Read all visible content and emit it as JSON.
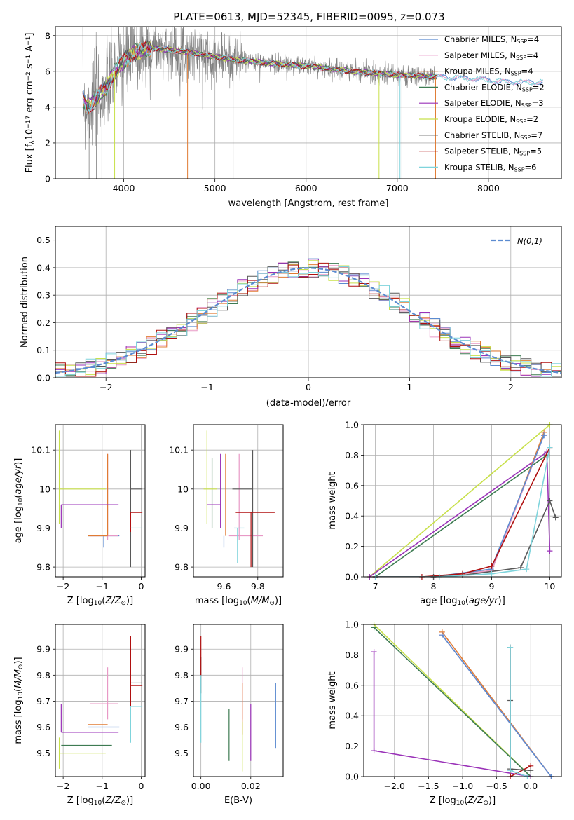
{
  "title": "PLATE=0613, MJD=52345, FIBERID=0095, z=0.073",
  "colors": {
    "Chabrier MILES": "#5b8bd0",
    "Salpeter MILES": "#e899c6",
    "Kroupa MILES": "#e07b33",
    "Chabrier ELODIE": "#3d7b52",
    "Salpeter ELODIE": "#9a32b8",
    "Kroupa ELODIE": "#c8e04a",
    "Chabrier STELIB": "#585858",
    "Salpeter STELIB": "#b01010",
    "Kroupa STELIB": "#7fd4dc",
    "data": "#808080",
    "gauss": "#5b8bd0"
  },
  "chart_data": [
    {
      "id": "spectrum",
      "type": "line",
      "xlabel": "wavelength [Angstrom, rest frame]",
      "ylabel": "Flux [f_λ10^-17 erg cm^-2 s^-1 A^-1]",
      "xlim": [
        3250,
        8800
      ],
      "ylim": [
        0,
        8.5
      ],
      "xticks": [
        4000,
        5000,
        6000,
        7000,
        8000
      ],
      "yticks": [
        0,
        2,
        4,
        6,
        8
      ],
      "legend_position": "top-right",
      "legend": [
        {
          "model": "Chabrier MILES",
          "nssp": "4"
        },
        {
          "model": "Salpeter MILES",
          "nssp": "4"
        },
        {
          "model": "Kroupa MILES",
          "nssp": "4"
        },
        {
          "model": "Chabrier ELODIE",
          "nssp": "2"
        },
        {
          "model": "Salpeter ELODIE",
          "nssp": "3"
        },
        {
          "model": "Kroupa ELODIE",
          "nssp": "2"
        },
        {
          "model": "Chabrier STELIB",
          "nssp": "7"
        },
        {
          "model": "Salpeter STELIB",
          "nssp": "5"
        },
        {
          "model": "Kroupa STELIB",
          "nssp": "6"
        }
      ],
      "continuum": {
        "x": [
          3550,
          3600,
          3700,
          3800,
          3900,
          4000,
          4100,
          4300,
          4500,
          4800,
          5000,
          5500,
          6000,
          6500,
          7000,
          7400,
          7800,
          8200,
          8600
        ],
        "y": [
          4.5,
          4.0,
          4.5,
          5.0,
          6.0,
          6.6,
          7.0,
          7.3,
          7.2,
          7.0,
          6.8,
          6.5,
          6.3,
          6.0,
          5.8,
          5.7,
          5.6,
          5.4,
          5.4
        ]
      },
      "data_range": [
        3550,
        7420
      ],
      "model_range": [
        3550,
        8600
      ]
    },
    {
      "id": "residuals",
      "type": "histogram",
      "xlabel": "(data-model)/error",
      "ylabel": "Normed distribution",
      "xlim": [
        -2.5,
        2.5
      ],
      "ylim": [
        0,
        0.55
      ],
      "xticks": [
        -2,
        -1,
        0,
        1,
        2
      ],
      "yticks": [
        0.0,
        0.1,
        0.2,
        0.3,
        0.4,
        0.5
      ],
      "bin_width": 0.1,
      "gaussian_label": "N(0,1)",
      "legend_position": "top-right"
    },
    {
      "id": "age_vs_Z",
      "type": "scatter",
      "xlabel": "Z [log10(Z/Z_sun)]",
      "ylabel": "age [log10(age/yr)]",
      "xlim": [
        -2.2,
        0.1
      ],
      "ylim": [
        9.775,
        10.165
      ],
      "xticks": [
        -2,
        -1,
        0
      ],
      "yticks": [
        9.8,
        9.9,
        10.0,
        10.1
      ],
      "points": [
        {
          "model": "Chabrier MILES",
          "x": -0.96,
          "y": 9.88,
          "xerr": [
            0.4,
            0.4
          ],
          "yerr": [
            0.03,
            0.0
          ]
        },
        {
          "model": "Salpeter MILES",
          "x": -0.86,
          "y": 9.88,
          "xerr": [
            0.46,
            0.26
          ],
          "yerr": [
            0.01,
            0.21
          ]
        },
        {
          "model": "Kroupa MILES",
          "x": -0.86,
          "y": 9.88,
          "xerr": [
            0.5,
            0.0
          ],
          "yerr": [
            0.0,
            0.21
          ]
        },
        {
          "model": "Chabrier ELODIE",
          "x": -0.27,
          "y": 9.97,
          "xerr": [
            0.0,
            0.0
          ],
          "yerr": [
            0.09,
            0.13
          ]
        },
        {
          "model": "Salpeter ELODIE",
          "x": -2.05,
          "y": 9.96,
          "xerr": [
            0.0,
            1.47
          ],
          "yerr": [
            0.06,
            0.0
          ]
        },
        {
          "model": "Kroupa ELODIE",
          "x": -2.1,
          "y": 10.0,
          "xerr": [
            0.0,
            1.19
          ],
          "yerr": [
            0.09,
            0.15
          ]
        },
        {
          "model": "Chabrier STELIB",
          "x": -0.27,
          "y": 10.0,
          "xerr": [
            0.0,
            0.3
          ],
          "yerr": [
            0.2,
            0.1
          ]
        },
        {
          "model": "Salpeter STELIB",
          "x": -0.27,
          "y": 9.94,
          "xerr": [
            0.0,
            0.3
          ],
          "yerr": [
            0.05,
            0.0
          ]
        },
        {
          "model": "Kroupa STELIB",
          "x": -0.27,
          "y": 9.9,
          "xerr": [
            0.0,
            0.3
          ],
          "yerr": [
            0.0,
            0.0
          ]
        }
      ]
    },
    {
      "id": "age_vs_mass",
      "type": "scatter",
      "xlabel": "mass [log10(M/M_sun)]",
      "ylabel": "",
      "xlim": [
        9.42,
        9.95
      ],
      "ylim": [
        9.775,
        10.165
      ],
      "xticks": [
        9.6,
        9.8
      ],
      "yticks": [
        9.8,
        9.9,
        10.0,
        10.1
      ],
      "points": [
        {
          "model": "Chabrier MILES",
          "x": 9.6,
          "y": 9.88,
          "xerr": [
            0.0,
            0.0
          ],
          "yerr": [
            0.03,
            0.0
          ]
        },
        {
          "model": "Salpeter MILES",
          "x": 9.69,
          "y": 9.88,
          "xerr": [
            0.06,
            0.14
          ],
          "yerr": [
            0.01,
            0.21
          ]
        },
        {
          "model": "Kroupa MILES",
          "x": 9.61,
          "y": 9.88,
          "xerr": [
            0.0,
            0.0
          ],
          "yerr": [
            0.0,
            0.21
          ]
        },
        {
          "model": "Chabrier ELODIE",
          "x": 9.53,
          "y": 9.96,
          "xerr": [
            0.0,
            0.0
          ],
          "yerr": [
            0.06,
            0.12
          ]
        },
        {
          "model": "Salpeter ELODIE",
          "x": 9.58,
          "y": 9.96,
          "xerr": [
            0.08,
            0.0
          ],
          "yerr": [
            0.06,
            0.13
          ]
        },
        {
          "model": "Kroupa ELODIE",
          "x": 9.5,
          "y": 10.0,
          "xerr": [
            0.02,
            0.06
          ],
          "yerr": [
            0.09,
            0.15
          ]
        },
        {
          "model": "Chabrier STELIB",
          "x": 9.77,
          "y": 10.0,
          "xerr": [
            0.12,
            0.0
          ],
          "yerr": [
            0.2,
            0.1
          ]
        },
        {
          "model": "Salpeter STELIB",
          "x": 9.76,
          "y": 9.94,
          "xerr": [
            0.09,
            0.14
          ],
          "yerr": [
            0.14,
            0.0
          ]
        },
        {
          "model": "Kroupa STELIB",
          "x": 9.68,
          "y": 9.9,
          "xerr": [
            0.02,
            0.04
          ],
          "yerr": [
            0.09,
            0.0
          ]
        }
      ]
    },
    {
      "id": "weight_vs_age",
      "type": "line",
      "xlabel": "age [log10(age/yr)]",
      "ylabel": "mass weight",
      "xlim": [
        6.8,
        10.2
      ],
      "ylim": [
        0,
        1.0
      ],
      "xticks": [
        7,
        8,
        9,
        10
      ],
      "yticks": [
        0.0,
        0.2,
        0.4,
        0.6,
        0.8,
        1.0
      ],
      "series": [
        {
          "model": "Kroupa ELODIE",
          "x": [
            6.9,
            10.0
          ],
          "y": [
            0.0,
            1.0
          ]
        },
        {
          "model": "Salpeter ELODIE",
          "x": [
            6.9,
            9.95,
            10.0
          ],
          "y": [
            0.0,
            0.82,
            0.17
          ]
        },
        {
          "model": "Chabrier ELODIE",
          "x": [
            7.0,
            9.95
          ],
          "y": [
            0.0,
            0.8
          ]
        },
        {
          "model": "Kroupa MILES",
          "x": [
            7.0,
            8.0,
            9.0,
            9.9
          ],
          "y": [
            0.0,
            0.0,
            0.04,
            0.95
          ]
        },
        {
          "model": "Salpeter MILES",
          "x": [
            7.0,
            8.0,
            9.0,
            9.9
          ],
          "y": [
            0.0,
            0.0,
            0.04,
            0.93
          ]
        },
        {
          "model": "Chabrier MILES",
          "x": [
            7.0,
            8.0,
            8.99,
            9.9
          ],
          "y": [
            0.0,
            0.0,
            0.05,
            0.93
          ]
        },
        {
          "model": "Salpeter STELIB",
          "x": [
            7.0,
            7.8,
            8.5,
            9.0,
            10.0
          ],
          "y": [
            0.0,
            0.0,
            0.02,
            0.07,
            0.85
          ]
        },
        {
          "model": "Chabrier STELIB",
          "x": [
            7.0,
            8.0,
            8.5,
            9.5,
            10.0,
            10.1
          ],
          "y": [
            0.0,
            0.0,
            0.01,
            0.06,
            0.5,
            0.39
          ]
        },
        {
          "model": "Kroupa STELIB",
          "x": [
            7.0,
            8.1,
            9.0,
            9.6,
            10.0
          ],
          "y": [
            0.0,
            0.0,
            0.02,
            0.05,
            0.85
          ]
        }
      ]
    },
    {
      "id": "mass_vs_Z",
      "type": "scatter",
      "xlabel": "Z [log10(Z/Z_sun)]",
      "ylabel": "mass [log10(M/M_sun)]",
      "xlim": [
        -2.2,
        0.1
      ],
      "ylim": [
        9.41,
        9.995
      ],
      "xticks": [
        -2,
        -1,
        0
      ],
      "yticks": [
        9.5,
        9.6,
        9.7,
        9.8,
        9.9
      ],
      "points": [
        {
          "model": "Chabrier MILES",
          "x": -0.96,
          "y": 9.6,
          "xerr": [
            0.4,
            0.4
          ],
          "yerr": [
            0.0,
            0.0
          ]
        },
        {
          "model": "Salpeter MILES",
          "x": -0.86,
          "y": 9.69,
          "xerr": [
            0.46,
            0.26
          ],
          "yerr": [
            0.06,
            0.14
          ]
        },
        {
          "model": "Kroupa MILES",
          "x": -0.86,
          "y": 9.61,
          "xerr": [
            0.5,
            0.0
          ],
          "yerr": [
            0.0,
            0.0
          ]
        },
        {
          "model": "Chabrier ELODIE",
          "x": -2.05,
          "y": 9.53,
          "xerr": [
            0.0,
            1.3
          ],
          "yerr": [
            0.0,
            0.0
          ]
        },
        {
          "model": "Salpeter ELODIE",
          "x": -2.05,
          "y": 9.58,
          "xerr": [
            0.0,
            1.47
          ],
          "yerr": [
            0.0,
            0.11
          ]
        },
        {
          "model": "Kroupa ELODIE",
          "x": -2.1,
          "y": 9.5,
          "xerr": [
            0.0,
            1.19
          ],
          "yerr": [
            0.06,
            0.06
          ]
        },
        {
          "model": "Chabrier STELIB",
          "x": -0.27,
          "y": 9.77,
          "xerr": [
            0.0,
            0.3
          ],
          "yerr": [
            0.12,
            0.0
          ]
        },
        {
          "model": "Salpeter STELIB",
          "x": -0.27,
          "y": 9.76,
          "xerr": [
            0.0,
            0.3
          ],
          "yerr": [
            0.09,
            0.19
          ]
        },
        {
          "model": "Kroupa STELIB",
          "x": -0.27,
          "y": 9.68,
          "xerr": [
            0.0,
            0.3
          ],
          "yerr": [
            0.14,
            0.0
          ]
        }
      ]
    },
    {
      "id": "mass_vs_ebv",
      "type": "scatter",
      "xlabel": "E(B-V)",
      "ylabel": "",
      "xlim": [
        -0.003,
        0.033
      ],
      "ylim": [
        9.41,
        9.995
      ],
      "xticks": [
        0.0,
        0.02
      ],
      "xticklabels": [
        "0.00",
        "0.02"
      ],
      "yticks": [
        9.5,
        9.6,
        9.7,
        9.8,
        9.9
      ],
      "points": [
        {
          "model": "Chabrier MILES",
          "x": 0.03,
          "y": 9.65,
          "xerr": [
            0.0,
            0.0
          ],
          "yerr": [
            0.13,
            0.12
          ]
        },
        {
          "model": "Salpeter MILES",
          "x": 0.0166,
          "y": 9.69,
          "xerr": [
            0.0,
            0.0
          ],
          "yerr": [
            0.06,
            0.14
          ]
        },
        {
          "model": "Kroupa MILES",
          "x": 0.0166,
          "y": 9.69,
          "xerr": [
            0.0,
            0.0
          ],
          "yerr": [
            0.12,
            0.08
          ]
        },
        {
          "model": "Chabrier ELODIE",
          "x": 0.0113,
          "y": 9.57,
          "xerr": [
            0.0,
            0.0
          ],
          "yerr": [
            0.1,
            0.1
          ]
        },
        {
          "model": "Salpeter ELODIE",
          "x": 0.02,
          "y": 9.58,
          "xerr": [
            0.0,
            0.0
          ],
          "yerr": [
            0.11,
            0.11
          ]
        },
        {
          "model": "Kroupa ELODIE",
          "x": 0.0166,
          "y": 9.52,
          "xerr": [
            0.0,
            0.0
          ],
          "yerr": [
            0.09,
            0.1
          ]
        },
        {
          "model": "Chabrier STELIB",
          "x": 0.0,
          "y": 9.77,
          "xerr": [
            0.0,
            0.0
          ],
          "yerr": [
            0.04,
            0.1
          ]
        },
        {
          "model": "Salpeter STELIB",
          "x": 0.0,
          "y": 9.84,
          "xerr": [
            0.0,
            0.0
          ],
          "yerr": [
            0.04,
            0.11
          ]
        },
        {
          "model": "Kroupa STELIB",
          "x": 0.0,
          "y": 9.68,
          "xerr": [
            0.0,
            0.0
          ],
          "yerr": [
            0.14,
            0.12
          ]
        }
      ]
    },
    {
      "id": "weight_vs_Z",
      "type": "line",
      "xlabel": "Z [log10(Z/Z_sun)]",
      "ylabel": "mass weight",
      "xlim": [
        -2.45,
        0.45
      ],
      "ylim": [
        0,
        1.0
      ],
      "xticks": [
        -2.0,
        -1.5,
        -1.0,
        -0.5,
        0.0
      ],
      "xticklabels": [
        "−2.0",
        "−1.5",
        "−1.0",
        "−0.5",
        "0.0"
      ],
      "yticks": [
        0.0,
        0.2,
        0.4,
        0.6,
        0.8,
        1.0
      ],
      "series": [
        {
          "model": "Kroupa ELODIE",
          "x": [
            -2.3,
            0.0
          ],
          "y": [
            1.0,
            0.0
          ]
        },
        {
          "model": "Chabrier ELODIE",
          "x": [
            -2.3,
            0.0
          ],
          "y": [
            0.98,
            0.0
          ]
        },
        {
          "model": "Salpeter ELODIE",
          "x": [
            -2.3,
            -2.3,
            0.0
          ],
          "y": [
            0.82,
            0.17,
            0.0
          ]
        },
        {
          "model": "Kroupa MILES",
          "x": [
            -1.3,
            0.3
          ],
          "y": [
            0.95,
            0.0
          ]
        },
        {
          "model": "Salpeter MILES",
          "x": [
            -1.3,
            0.3
          ],
          "y": [
            0.93,
            0.0
          ]
        },
        {
          "model": "Chabrier MILES",
          "x": [
            -1.3,
            0.3
          ],
          "y": [
            0.93,
            0.0
          ]
        },
        {
          "model": "Salpeter STELIB",
          "x": [
            -0.3,
            -0.3,
            0.0
          ],
          "y": [
            0.85,
            0.0,
            0.07
          ]
        },
        {
          "model": "Chabrier STELIB",
          "x": [
            -0.3,
            -0.3,
            0.0
          ],
          "y": [
            0.5,
            0.05,
            0.04
          ]
        },
        {
          "model": "Kroupa STELIB",
          "x": [
            -0.3,
            -0.3,
            -0.05
          ],
          "y": [
            0.85,
            0.04,
            0.0
          ]
        }
      ]
    }
  ]
}
